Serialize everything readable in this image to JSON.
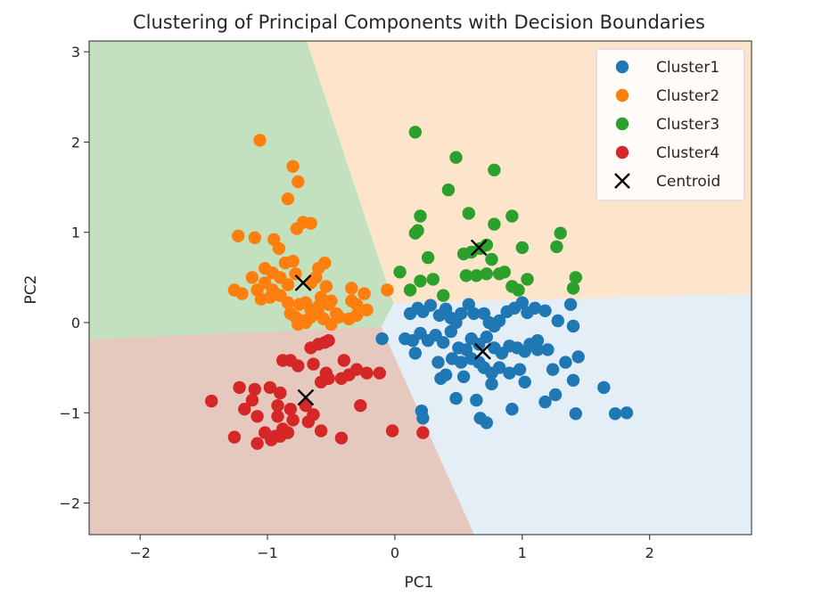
{
  "chart_data": {
    "type": "scatter",
    "title": "Clustering of Principal Components with Decision Boundaries",
    "xlabel": "PC1",
    "ylabel": "PC2",
    "xlim": [
      -2.4,
      2.8
    ],
    "ylim": [
      -2.35,
      3.12
    ],
    "xticks": [
      -2,
      -1,
      0,
      1,
      2
    ],
    "yticks": [
      -2,
      -1,
      0,
      1,
      2,
      3
    ],
    "tick_labels_x": [
      "−2",
      "−1",
      "0",
      "1",
      "2"
    ],
    "tick_labels_y": [
      "−2",
      "−1",
      "0",
      "1",
      "2",
      "3"
    ],
    "grid": false,
    "legend_position": "top-right",
    "regions": [
      {
        "cluster": "Cluster1",
        "color": "#e3eef7",
        "polygon": [
          [
            2.8,
            0.32
          ],
          [
            -0.01,
            0.22
          ],
          [
            -0.11,
            -0.05
          ],
          [
            0.62,
            -2.35
          ],
          [
            2.8,
            -2.35
          ]
        ]
      },
      {
        "cluster": "Cluster2",
        "color": "#c3e1bf",
        "polygon": [
          [
            -2.4,
            3.12
          ],
          [
            -0.69,
            3.12
          ],
          [
            -0.01,
            0.22
          ],
          [
            -0.11,
            -0.05
          ],
          [
            -2.4,
            -0.19
          ]
        ]
      },
      {
        "cluster": "Cluster3",
        "color": "#fde5cc",
        "polygon": [
          [
            -0.69,
            3.12
          ],
          [
            2.8,
            3.12
          ],
          [
            2.8,
            0.32
          ],
          [
            -0.01,
            0.22
          ]
        ]
      },
      {
        "cluster": "Cluster4",
        "color": "#e6c9be",
        "polygon": [
          [
            -2.4,
            -0.19
          ],
          [
            -0.11,
            -0.05
          ],
          [
            0.62,
            -2.35
          ],
          [
            -2.4,
            -2.35
          ]
        ]
      }
    ],
    "series": [
      {
        "name": "Cluster1",
        "color": "#1f77b4",
        "points": [
          [
            0.12,
            0.1
          ],
          [
            0.18,
            0.16
          ],
          [
            0.22,
            0.12
          ],
          [
            0.28,
            0.19
          ],
          [
            0.35,
            0.08
          ],
          [
            0.4,
            0.15
          ],
          [
            0.44,
            0.05
          ],
          [
            0.48,
            0.0
          ],
          [
            0.52,
            0.1
          ],
          [
            0.58,
            0.2
          ],
          [
            0.62,
            0.1
          ],
          [
            0.7,
            0.1
          ],
          [
            0.74,
            0.0
          ],
          [
            0.78,
            -0.04
          ],
          [
            0.82,
            0.02
          ],
          [
            0.88,
            0.12
          ],
          [
            0.94,
            0.16
          ],
          [
            1.0,
            0.22
          ],
          [
            1.04,
            0.11
          ],
          [
            1.1,
            0.16
          ],
          [
            1.18,
            0.13
          ],
          [
            1.28,
            0.02
          ],
          [
            1.38,
            0.2
          ],
          [
            1.4,
            -0.04
          ],
          [
            0.08,
            -0.18
          ],
          [
            -0.1,
            -0.18
          ],
          [
            0.14,
            -0.2
          ],
          [
            0.2,
            -0.12
          ],
          [
            0.26,
            -0.2
          ],
          [
            0.32,
            -0.14
          ],
          [
            0.38,
            -0.22
          ],
          [
            0.44,
            -0.1
          ],
          [
            0.5,
            -0.28
          ],
          [
            0.56,
            -0.3
          ],
          [
            0.6,
            -0.18
          ],
          [
            0.66,
            -0.24
          ],
          [
            0.72,
            -0.16
          ],
          [
            0.78,
            -0.28
          ],
          [
            0.84,
            -0.34
          ],
          [
            0.9,
            -0.26
          ],
          [
            0.96,
            -0.28
          ],
          [
            1.02,
            -0.32
          ],
          [
            1.06,
            -0.24
          ],
          [
            1.12,
            -0.2
          ],
          [
            1.2,
            -0.3
          ],
          [
            0.16,
            -0.34
          ],
          [
            0.34,
            -0.44
          ],
          [
            0.4,
            -0.58
          ],
          [
            0.45,
            -0.4
          ],
          [
            0.52,
            -0.44
          ],
          [
            0.6,
            -0.4
          ],
          [
            0.66,
            -0.44
          ],
          [
            0.7,
            -0.5
          ],
          [
            0.76,
            -0.56
          ],
          [
            0.82,
            -0.5
          ],
          [
            0.9,
            -0.56
          ],
          [
            0.98,
            -0.52
          ],
          [
            1.02,
            -0.66
          ],
          [
            1.12,
            -0.3
          ],
          [
            1.24,
            -0.52
          ],
          [
            1.34,
            -0.44
          ],
          [
            1.4,
            -0.64
          ],
          [
            1.44,
            -0.38
          ],
          [
            0.36,
            -0.62
          ],
          [
            0.54,
            -0.6
          ],
          [
            0.76,
            -0.68
          ],
          [
            1.26,
            -0.8
          ],
          [
            1.18,
            -0.88
          ],
          [
            0.48,
            -0.84
          ],
          [
            0.64,
            -0.86
          ],
          [
            0.92,
            -0.96
          ],
          [
            1.64,
            -0.72
          ],
          [
            1.42,
            -1.01
          ],
          [
            1.73,
            -1.01
          ],
          [
            1.82,
            -1.0
          ],
          [
            0.21,
            -0.98
          ],
          [
            0.22,
            -1.06
          ],
          [
            0.67,
            -1.06
          ],
          [
            0.72,
            -1.11
          ]
        ]
      },
      {
        "name": "Cluster2",
        "color": "#ff7f0e",
        "points": [
          [
            -1.06,
            2.02
          ],
          [
            -0.8,
            1.73
          ],
          [
            -0.76,
            1.56
          ],
          [
            -0.84,
            1.37
          ],
          [
            -0.72,
            1.11
          ],
          [
            -0.77,
            1.04
          ],
          [
            -0.66,
            1.1
          ],
          [
            -1.23,
            0.96
          ],
          [
            -1.1,
            0.94
          ],
          [
            -0.95,
            0.92
          ],
          [
            -0.91,
            0.82
          ],
          [
            -0.86,
            0.66
          ],
          [
            -0.8,
            0.68
          ],
          [
            -1.02,
            0.6
          ],
          [
            -0.96,
            0.55
          ],
          [
            -0.6,
            0.6
          ],
          [
            -0.55,
            0.66
          ],
          [
            -1.12,
            0.5
          ],
          [
            -1.08,
            0.36
          ],
          [
            -1.02,
            0.44
          ],
          [
            -0.96,
            0.36
          ],
          [
            -0.9,
            0.5
          ],
          [
            -0.84,
            0.42
          ],
          [
            -0.78,
            0.54
          ],
          [
            -0.66,
            0.44
          ],
          [
            -0.62,
            0.5
          ],
          [
            -0.58,
            0.28
          ],
          [
            -0.54,
            0.4
          ],
          [
            -1.26,
            0.36
          ],
          [
            -1.2,
            0.32
          ],
          [
            -0.34,
            0.38
          ],
          [
            -0.24,
            0.32
          ],
          [
            -0.06,
            0.36
          ],
          [
            -1.05,
            0.26
          ],
          [
            -0.98,
            0.28
          ],
          [
            -0.9,
            0.3
          ],
          [
            -0.84,
            0.22
          ],
          [
            -0.75,
            0.2
          ],
          [
            -0.7,
            0.22
          ],
          [
            -0.66,
            0.14
          ],
          [
            -0.6,
            0.18
          ],
          [
            -0.52,
            0.2
          ],
          [
            -0.5,
            0.24
          ],
          [
            -0.46,
            0.1
          ],
          [
            -0.34,
            0.24
          ],
          [
            -0.3,
            0.2
          ],
          [
            -0.22,
            0.14
          ],
          [
            -0.78,
            0.06
          ],
          [
            -0.72,
            0.02
          ],
          [
            -0.66,
            0.06
          ],
          [
            -0.6,
            0.1
          ],
          [
            -0.56,
            0.04
          ],
          [
            -0.5,
            -0.02
          ],
          [
            -0.44,
            0.06
          ],
          [
            -0.36,
            0.04
          ],
          [
            -0.3,
            0.08
          ],
          [
            -0.82,
            0.1
          ],
          [
            -0.76,
            -0.02
          ],
          [
            -0.7,
            0.0
          ]
        ]
      },
      {
        "name": "Cluster3",
        "color": "#2ca02c",
        "points": [
          [
            0.16,
            2.11
          ],
          [
            0.48,
            1.83
          ],
          [
            0.78,
            1.69
          ],
          [
            0.42,
            1.47
          ],
          [
            0.2,
            1.18
          ],
          [
            0.58,
            1.21
          ],
          [
            0.78,
            1.09
          ],
          [
            0.92,
            1.18
          ],
          [
            0.18,
            1.02
          ],
          [
            0.16,
            0.99
          ],
          [
            0.26,
            0.72
          ],
          [
            0.54,
            0.76
          ],
          [
            0.6,
            0.78
          ],
          [
            0.67,
            0.82
          ],
          [
            0.72,
            0.86
          ],
          [
            1.0,
            0.83
          ],
          [
            1.27,
            0.84
          ],
          [
            1.3,
            0.99
          ],
          [
            0.76,
            0.7
          ],
          [
            0.04,
            0.56
          ],
          [
            0.2,
            0.46
          ],
          [
            0.3,
            0.48
          ],
          [
            0.56,
            0.52
          ],
          [
            0.64,
            0.52
          ],
          [
            0.72,
            0.54
          ],
          [
            0.82,
            0.54
          ],
          [
            0.86,
            0.56
          ],
          [
            0.92,
            0.4
          ],
          [
            0.97,
            0.36
          ],
          [
            1.04,
            0.48
          ],
          [
            1.42,
            0.5
          ],
          [
            1.4,
            0.38
          ],
          [
            0.12,
            0.36
          ],
          [
            0.38,
            0.3
          ]
        ]
      },
      {
        "name": "Cluster4",
        "color": "#d62728",
        "points": [
          [
            -0.55,
            -0.22
          ],
          [
            -0.6,
            -0.24
          ],
          [
            -0.52,
            -0.2
          ],
          [
            -0.66,
            -0.28
          ],
          [
            -0.88,
            -0.42
          ],
          [
            -0.82,
            -0.42
          ],
          [
            -0.76,
            -0.48
          ],
          [
            -0.64,
            -0.46
          ],
          [
            -0.4,
            -0.42
          ],
          [
            -0.3,
            -0.52
          ],
          [
            -0.22,
            -0.56
          ],
          [
            -0.54,
            -0.56
          ],
          [
            -0.52,
            -0.62
          ],
          [
            -0.58,
            -0.66
          ],
          [
            -0.42,
            -0.62
          ],
          [
            -0.36,
            -0.58
          ],
          [
            -0.12,
            -0.56
          ],
          [
            -1.22,
            -0.72
          ],
          [
            -1.1,
            -0.74
          ],
          [
            -0.98,
            -0.72
          ],
          [
            -0.9,
            -0.78
          ],
          [
            -1.12,
            -0.86
          ],
          [
            -0.92,
            -0.92
          ],
          [
            -0.82,
            -0.96
          ],
          [
            -0.7,
            -0.92
          ],
          [
            -0.64,
            -1.02
          ],
          [
            -1.44,
            -0.87
          ],
          [
            -1.18,
            -0.96
          ],
          [
            -1.08,
            -1.04
          ],
          [
            -0.92,
            -1.04
          ],
          [
            -0.8,
            -1.08
          ],
          [
            -0.68,
            -1.1
          ],
          [
            -0.27,
            -0.92
          ],
          [
            -0.58,
            -1.2
          ],
          [
            -1.02,
            -1.22
          ],
          [
            -0.94,
            -1.26
          ],
          [
            -0.88,
            -1.18
          ],
          [
            -0.84,
            -1.22
          ],
          [
            -0.97,
            -1.3
          ],
          [
            -1.08,
            -1.34
          ],
          [
            -1.26,
            -1.27
          ],
          [
            -0.42,
            -1.28
          ],
          [
            -0.02,
            -1.2
          ],
          [
            0.22,
            -1.22
          ],
          [
            -0.9,
            -1.26
          ]
        ]
      }
    ],
    "centroids": {
      "name": "Centroid",
      "color": "#000000",
      "points": [
        [
          0.66,
          0.83
        ],
        [
          -0.72,
          0.44
        ],
        [
          0.69,
          -0.32
        ],
        [
          -0.7,
          -0.83
        ]
      ]
    },
    "legend": [
      {
        "label": "Cluster1",
        "color": "#1f77b4",
        "marker": "circle"
      },
      {
        "label": "Cluster2",
        "color": "#ff7f0e",
        "marker": "circle"
      },
      {
        "label": "Cluster3",
        "color": "#2ca02c",
        "marker": "circle"
      },
      {
        "label": "Cluster4",
        "color": "#d62728",
        "marker": "circle"
      },
      {
        "label": "Centroid",
        "color": "#000000",
        "marker": "x"
      }
    ]
  }
}
